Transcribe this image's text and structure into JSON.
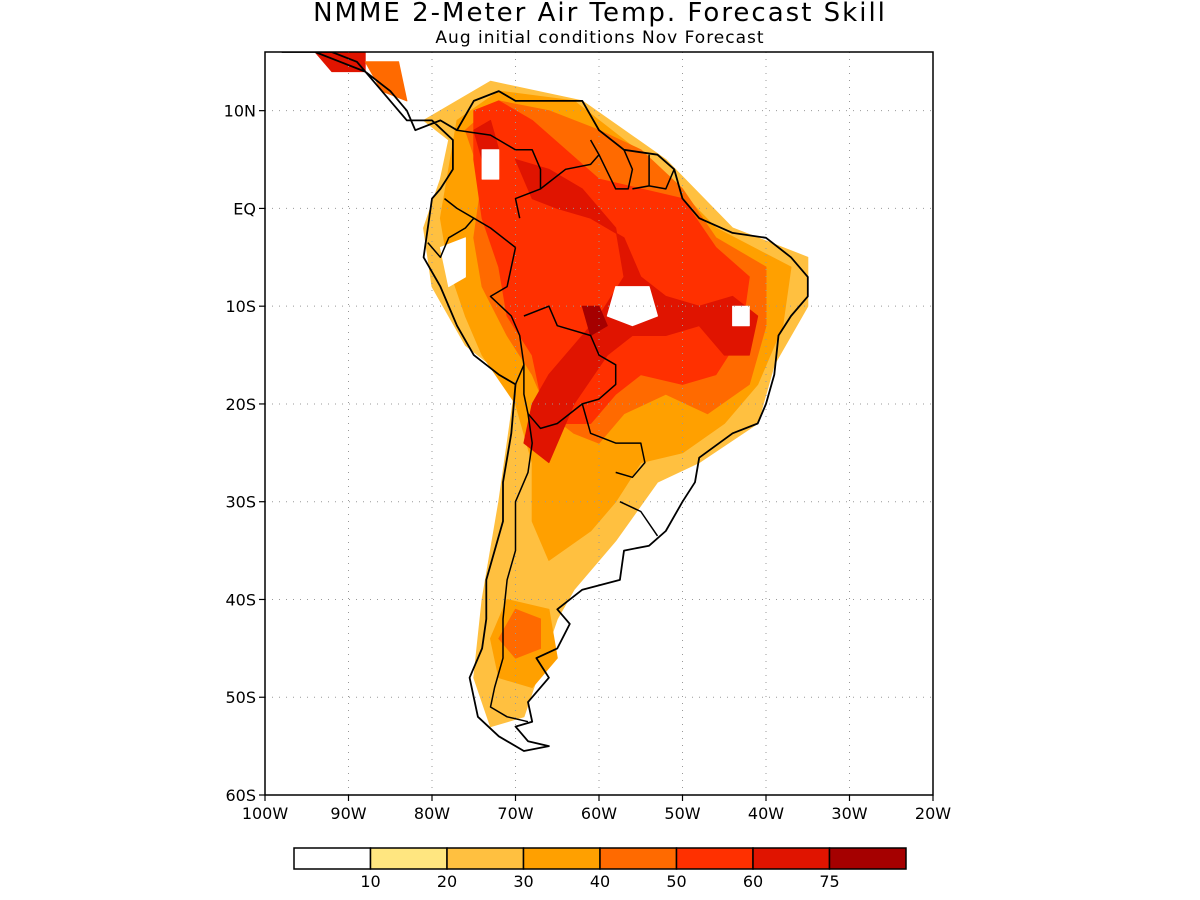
{
  "title": "NMME 2-Meter Air Temp. Forecast Skill",
  "subtitle": "Aug initial conditions  Nov Forecast",
  "map": {
    "projection": "equirectangular",
    "lon_range": [
      -100,
      -20
    ],
    "lat_range": [
      -60,
      16
    ],
    "lon_ticks": [
      {
        "value": -100,
        "label": "100W"
      },
      {
        "value": -90,
        "label": "90W"
      },
      {
        "value": -80,
        "label": "80W"
      },
      {
        "value": -70,
        "label": "70W"
      },
      {
        "value": -60,
        "label": "60W"
      },
      {
        "value": -50,
        "label": "50W"
      },
      {
        "value": -40,
        "label": "40W"
      },
      {
        "value": -30,
        "label": "30W"
      },
      {
        "value": -20,
        "label": "20W"
      }
    ],
    "lat_ticks": [
      {
        "value": 10,
        "label": "10N"
      },
      {
        "value": 0,
        "label": "EQ"
      },
      {
        "value": -10,
        "label": "10S"
      },
      {
        "value": -20,
        "label": "20S"
      },
      {
        "value": -30,
        "label": "30S"
      },
      {
        "value": -40,
        "label": "40S"
      },
      {
        "value": -50,
        "label": "50S"
      },
      {
        "value": -60,
        "label": "60S"
      }
    ],
    "grid": true,
    "grid_style": "dotted"
  },
  "colorbar": {
    "colors": [
      "#ffffff",
      "#ffe680",
      "#ffc040",
      "#ffa000",
      "#ff6a00",
      "#ff3000",
      "#e01400",
      "#a50000"
    ],
    "labels": [
      "10",
      "20",
      "30",
      "40",
      "50",
      "60",
      "75"
    ]
  },
  "skill_regions": [
    {
      "level": 2,
      "points": [
        [
          -81,
          9
        ],
        [
          -73,
          13
        ],
        [
          -62,
          11
        ],
        [
          -52,
          5
        ],
        [
          -44,
          -2
        ],
        [
          -35,
          -5
        ],
        [
          -35,
          -10
        ],
        [
          -39,
          -16
        ],
        [
          -41,
          -22
        ],
        [
          -48,
          -26
        ],
        [
          -53,
          -28
        ],
        [
          -58,
          -34
        ],
        [
          -63,
          -39
        ],
        [
          -65,
          -42
        ],
        [
          -67,
          -47
        ],
        [
          -69,
          -52
        ],
        [
          -73,
          -53
        ],
        [
          -75,
          -48
        ],
        [
          -74,
          -40
        ],
        [
          -72,
          -30
        ],
        [
          -70,
          -18
        ],
        [
          -76,
          -14
        ],
        [
          -80,
          -8
        ],
        [
          -81,
          -2
        ],
        [
          -79,
          3
        ],
        [
          -78,
          7
        ]
      ]
    },
    {
      "level": 3,
      "points": [
        [
          -77,
          9
        ],
        [
          -72,
          12
        ],
        [
          -63,
          11
        ],
        [
          -54,
          5
        ],
        [
          -46,
          -2
        ],
        [
          -37,
          -6
        ],
        [
          -38,
          -12
        ],
        [
          -41,
          -18
        ],
        [
          -45,
          -22
        ],
        [
          -50,
          -25
        ],
        [
          -55,
          -26
        ],
        [
          -58,
          -30
        ],
        [
          -61,
          -33
        ],
        [
          -66,
          -36
        ],
        [
          -68,
          -32
        ],
        [
          -68,
          -26
        ],
        [
          -70,
          -20
        ],
        [
          -74,
          -15
        ],
        [
          -76,
          -11
        ],
        [
          -78,
          -6
        ],
        [
          -79,
          -1
        ],
        [
          -78,
          4
        ]
      ]
    },
    {
      "level": 3,
      "points": [
        [
          -71,
          -40
        ],
        [
          -66,
          -41
        ],
        [
          -65,
          -46
        ],
        [
          -68,
          -49
        ],
        [
          -72,
          -48
        ],
        [
          -73,
          -44
        ]
      ]
    },
    {
      "level": 4,
      "points": [
        [
          -76,
          8
        ],
        [
          -72,
          11
        ],
        [
          -66,
          10
        ],
        [
          -60,
          8
        ],
        [
          -55,
          6
        ],
        [
          -50,
          2
        ],
        [
          -46,
          -3
        ],
        [
          -40,
          -6
        ],
        [
          -40,
          -12
        ],
        [
          -42,
          -18
        ],
        [
          -47,
          -21
        ],
        [
          -52,
          -19
        ],
        [
          -57,
          -21
        ],
        [
          -60,
          -24
        ],
        [
          -63,
          -23
        ],
        [
          -66,
          -21
        ],
        [
          -68,
          -17
        ],
        [
          -71,
          -13
        ],
        [
          -74,
          -8
        ],
        [
          -75,
          -3
        ],
        [
          -74,
          3
        ]
      ]
    },
    {
      "level": 4,
      "points": [
        [
          -70,
          -41
        ],
        [
          -67,
          -42
        ],
        [
          -67,
          -45
        ],
        [
          -70,
          -46
        ],
        [
          -72,
          -44
        ]
      ]
    },
    {
      "level": 5,
      "points": [
        [
          -75,
          10
        ],
        [
          -72,
          11
        ],
        [
          -68,
          9
        ],
        [
          -64,
          6
        ],
        [
          -60,
          3
        ],
        [
          -55,
          2
        ],
        [
          -50,
          1
        ],
        [
          -46,
          -4
        ],
        [
          -42,
          -7
        ],
        [
          -43,
          -13
        ],
        [
          -46,
          -17
        ],
        [
          -50,
          -18
        ],
        [
          -55,
          -17
        ],
        [
          -58,
          -19
        ],
        [
          -61,
          -22
        ],
        [
          -64,
          -22
        ],
        [
          -67,
          -19
        ],
        [
          -68,
          -15
        ],
        [
          -71,
          -11
        ],
        [
          -72,
          -6
        ],
        [
          -74,
          -1
        ],
        [
          -75,
          5
        ]
      ]
    },
    {
      "level": 6,
      "points": [
        [
          -70,
          5
        ],
        [
          -66,
          4
        ],
        [
          -62,
          2
        ],
        [
          -58,
          -2
        ],
        [
          -57,
          -7
        ],
        [
          -60,
          -11
        ],
        [
          -63,
          -14
        ],
        [
          -66,
          -17
        ],
        [
          -68,
          -20
        ],
        [
          -69,
          -24
        ],
        [
          -66,
          -26
        ],
        [
          -63,
          -20
        ],
        [
          -59,
          -15
        ],
        [
          -56,
          -13
        ],
        [
          -52,
          -13
        ],
        [
          -48,
          -12
        ],
        [
          -45,
          -15
        ],
        [
          -42,
          -15
        ],
        [
          -41,
          -11
        ],
        [
          -44,
          -9
        ],
        [
          -48,
          -10
        ],
        [
          -52,
          -9
        ],
        [
          -55,
          -7
        ],
        [
          -57,
          -3
        ],
        [
          -61,
          -1
        ],
        [
          -65,
          0
        ],
        [
          -68,
          1
        ]
      ]
    },
    {
      "level": 6,
      "points": [
        [
          -75,
          8
        ],
        [
          -73,
          9
        ],
        [
          -72,
          6
        ],
        [
          -74,
          5
        ]
      ]
    },
    {
      "level": 7,
      "points": [
        [
          -62,
          -10
        ],
        [
          -60,
          -10
        ],
        [
          -59,
          -12
        ],
        [
          -61,
          -13
        ]
      ]
    },
    {
      "level": 0,
      "points": [
        [
          -58,
          -8
        ],
        [
          -54,
          -8
        ],
        [
          -53,
          -11
        ],
        [
          -56,
          -12
        ],
        [
          -59,
          -11
        ]
      ]
    },
    {
      "level": 0,
      "points": [
        [
          -79,
          -4
        ],
        [
          -76,
          -3
        ],
        [
          -76,
          -7
        ],
        [
          -78,
          -8
        ]
      ]
    },
    {
      "level": 0,
      "points": [
        [
          -74,
          3
        ],
        [
          -72,
          3
        ],
        [
          -72,
          6
        ],
        [
          -74,
          6
        ]
      ]
    },
    {
      "level": 0,
      "points": [
        [
          -44,
          -10
        ],
        [
          -42,
          -10
        ],
        [
          -42,
          -12
        ],
        [
          -44,
          -12
        ]
      ]
    },
    {
      "level": 6,
      "points": [
        [
          -94,
          16
        ],
        [
          -88,
          16
        ],
        [
          -88,
          14
        ],
        [
          -92,
          14
        ]
      ]
    },
    {
      "level": 4,
      "points": [
        [
          -88,
          15
        ],
        [
          -84,
          15
        ],
        [
          -83,
          11
        ],
        [
          -86,
          12
        ]
      ]
    }
  ],
  "coastline": [
    [
      -98,
      16
    ],
    [
      -94,
      16
    ],
    [
      -91,
      15
    ],
    [
      -88,
      14
    ],
    [
      -85,
      12
    ],
    [
      -83,
      10
    ],
    [
      -82,
      8
    ],
    [
      -79,
      9
    ],
    [
      -77,
      8
    ],
    [
      -75,
      11
    ],
    [
      -72,
      12
    ],
    [
      -70,
      11
    ],
    [
      -67,
      11
    ],
    [
      -62,
      11
    ],
    [
      -60,
      8
    ],
    [
      -57,
      6
    ],
    [
      -53,
      5.5
    ],
    [
      -51,
      4
    ],
    [
      -50,
      1
    ],
    [
      -48,
      -1
    ],
    [
      -44,
      -2.5
    ],
    [
      -40,
      -3
    ],
    [
      -37,
      -5
    ],
    [
      -35,
      -7
    ],
    [
      -35,
      -9
    ],
    [
      -37,
      -11
    ],
    [
      -38.5,
      -13
    ],
    [
      -39,
      -17
    ],
    [
      -40,
      -20
    ],
    [
      -41,
      -22
    ],
    [
      -44,
      -23
    ],
    [
      -48,
      -25.5
    ],
    [
      -48.5,
      -28
    ],
    [
      -50,
      -30
    ],
    [
      -52,
      -33
    ],
    [
      -54,
      -34.5
    ],
    [
      -57,
      -35
    ],
    [
      -57.5,
      -38
    ],
    [
      -62,
      -39
    ],
    [
      -65,
      -41
    ],
    [
      -63.5,
      -42.5
    ],
    [
      -65,
      -45
    ],
    [
      -67.5,
      -46
    ],
    [
      -66,
      -48
    ],
    [
      -68.5,
      -50.5
    ],
    [
      -68,
      -52.5
    ],
    [
      -70,
      -53
    ],
    [
      -68.5,
      -54.5
    ],
    [
      -66,
      -55
    ],
    [
      -69,
      -55.5
    ],
    [
      -72,
      -54
    ],
    [
      -74.5,
      -52
    ],
    [
      -75.5,
      -48
    ],
    [
      -74,
      -45
    ],
    [
      -73.5,
      -42
    ],
    [
      -73.5,
      -38
    ],
    [
      -71.5,
      -32
    ],
    [
      -71.5,
      -28
    ],
    [
      -70.5,
      -23
    ],
    [
      -70,
      -18
    ],
    [
      -72,
      -17
    ],
    [
      -75,
      -15
    ],
    [
      -77,
      -12
    ],
    [
      -79,
      -8
    ],
    [
      -81,
      -5
    ],
    [
      -80.5,
      -2
    ],
    [
      -80,
      1
    ],
    [
      -79,
      2
    ],
    [
      -77.5,
      4
    ],
    [
      -77.5,
      7
    ],
    [
      -80,
      9
    ],
    [
      -83,
      9
    ],
    [
      -85,
      11
    ],
    [
      -87,
      13
    ],
    [
      -89,
      15
    ],
    [
      -92,
      16
    ],
    [
      -97,
      16
    ]
  ],
  "borders": [
    [
      [
        -77,
        8
      ],
      [
        -73,
        7.5
      ],
      [
        -72,
        7
      ],
      [
        -70,
        6
      ],
      [
        -68,
        6
      ],
      [
        -67,
        4
      ],
      [
        -67,
        2
      ],
      [
        -70,
        1
      ],
      [
        -69.5,
        -1
      ]
    ],
    [
      [
        -78.5,
        1
      ],
      [
        -77,
        0
      ],
      [
        -75,
        -1
      ],
      [
        -73,
        -2
      ],
      [
        -70,
        -4
      ]
    ],
    [
      [
        -80.5,
        -3.5
      ],
      [
        -79,
        -5
      ],
      [
        -78,
        -3
      ],
      [
        -76,
        -2
      ],
      [
        -75,
        -1
      ]
    ],
    [
      [
        -70,
        -4
      ],
      [
        -71,
        -8
      ],
      [
        -73,
        -9
      ],
      [
        -70.5,
        -11
      ],
      [
        -69.5,
        -13
      ],
      [
        -69,
        -16
      ],
      [
        -70,
        -18
      ]
    ],
    [
      [
        -69,
        -11
      ],
      [
        -66,
        -10
      ],
      [
        -65,
        -12
      ],
      [
        -61,
        -13
      ],
      [
        -60,
        -15
      ],
      [
        -58,
        -16
      ],
      [
        -58,
        -18
      ],
      [
        -60,
        -19.5
      ],
      [
        -62,
        -20
      ],
      [
        -65,
        -22
      ],
      [
        -67,
        -22.5
      ],
      [
        -68.5,
        -21
      ],
      [
        -69,
        -19
      ],
      [
        -69,
        -16
      ]
    ],
    [
      [
        -62,
        -20
      ],
      [
        -61,
        -23
      ],
      [
        -58,
        -24
      ],
      [
        -55,
        -24
      ],
      [
        -54.5,
        -26
      ],
      [
        -56,
        -27.5
      ],
      [
        -58,
        -27
      ]
    ],
    [
      [
        -57.5,
        -30
      ],
      [
        -55,
        -31
      ],
      [
        -53,
        -33.5
      ]
    ],
    [
      [
        -68.5,
        -21
      ],
      [
        -68,
        -24
      ],
      [
        -68.5,
        -27
      ],
      [
        -70,
        -30
      ],
      [
        -70,
        -35
      ],
      [
        -71,
        -38
      ],
      [
        -71.5,
        -42
      ],
      [
        -71.5,
        -46
      ],
      [
        -72.5,
        -49
      ],
      [
        -73,
        -51
      ],
      [
        -71,
        -52
      ],
      [
        -68.5,
        -52.5
      ]
    ],
    [
      [
        -67,
        2
      ],
      [
        -64,
        4
      ],
      [
        -61,
        4.5
      ],
      [
        -60,
        5.5
      ],
      [
        -61,
        7
      ]
    ],
    [
      [
        -60,
        5.5
      ],
      [
        -58,
        2
      ],
      [
        -56.5,
        2
      ],
      [
        -56,
        4
      ],
      [
        -57,
        6
      ]
    ],
    [
      [
        -56,
        2
      ],
      [
        -54,
        2.3
      ],
      [
        -54,
        5.5
      ]
    ],
    [
      [
        -54,
        2.3
      ],
      [
        -52,
        2
      ],
      [
        -51,
        4
      ]
    ]
  ]
}
